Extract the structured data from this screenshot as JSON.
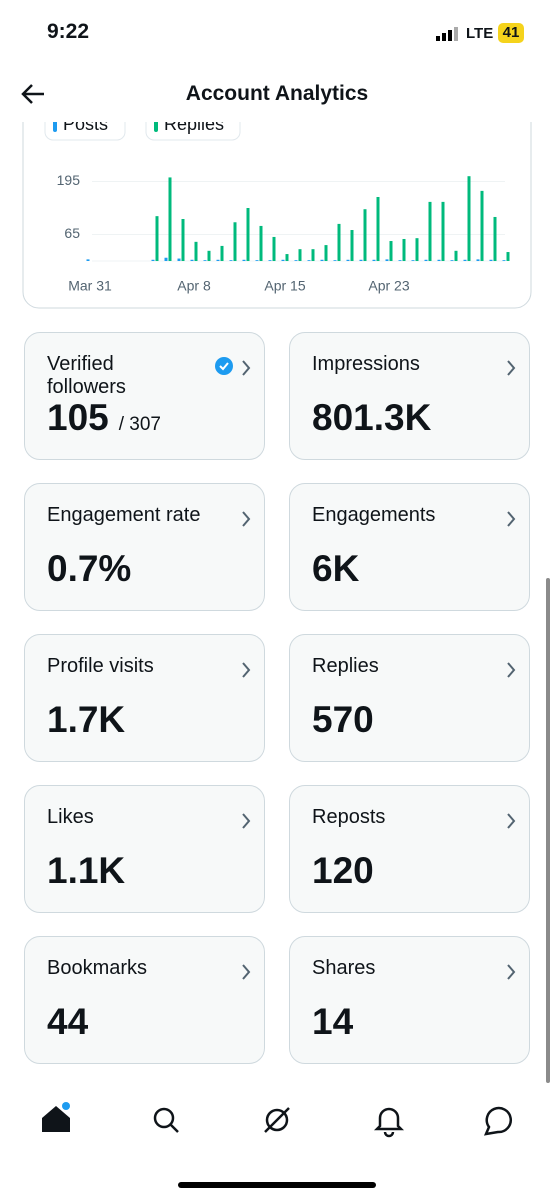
{
  "status_bar": {
    "time": "9:22",
    "network": "LTE",
    "battery": "41"
  },
  "header": {
    "title": "Account Analytics"
  },
  "chart_data": {
    "type": "bar",
    "categories": [
      "Mar 31",
      null,
      null,
      null,
      null,
      null,
      null,
      null,
      "Apr 8",
      null,
      null,
      null,
      null,
      null,
      null,
      "Apr 15",
      null,
      null,
      null,
      null,
      null,
      null,
      null,
      "Apr 23",
      null,
      null,
      null,
      null,
      null,
      null,
      null,
      null,
      null
    ],
    "series": [
      {
        "name": "Posts",
        "color": "#1d9bf0",
        "values": [
          4,
          0,
          0,
          0,
          0,
          3,
          8,
          6,
          3,
          2,
          3,
          2,
          3,
          2,
          2,
          3,
          2,
          2,
          3,
          2,
          3,
          3,
          3,
          4,
          2,
          2,
          3,
          3,
          2,
          3,
          4,
          3,
          2
        ]
      },
      {
        "name": "Replies",
        "color": "#00ba7c",
        "values": [
          0,
          0,
          0,
          0,
          0,
          110,
          205,
          103,
          47,
          25,
          37,
          95,
          130,
          86,
          59,
          17,
          29,
          29,
          39,
          91,
          76,
          127,
          157,
          49,
          54,
          56,
          145,
          145,
          25,
          208,
          172,
          108,
          22
        ]
      }
    ],
    "ylim": [
      0,
      260
    ],
    "yticks": [
      65,
      195
    ],
    "grid": true
  },
  "cards": [
    {
      "label": "Verified followers",
      "value": "105",
      "total": "/ 307"
    },
    {
      "label": "Impressions",
      "value": "801.3K"
    },
    {
      "label": "Engagement rate",
      "value": "0.7%"
    },
    {
      "label": "Engagements",
      "value": "6K"
    },
    {
      "label": "Profile visits",
      "value": "1.7K"
    },
    {
      "label": "Replies",
      "value": "570"
    },
    {
      "label": "Likes",
      "value": "1.1K"
    },
    {
      "label": "Reposts",
      "value": "120"
    },
    {
      "label": "Bookmarks",
      "value": "44"
    },
    {
      "label": "Shares",
      "value": "14"
    }
  ]
}
